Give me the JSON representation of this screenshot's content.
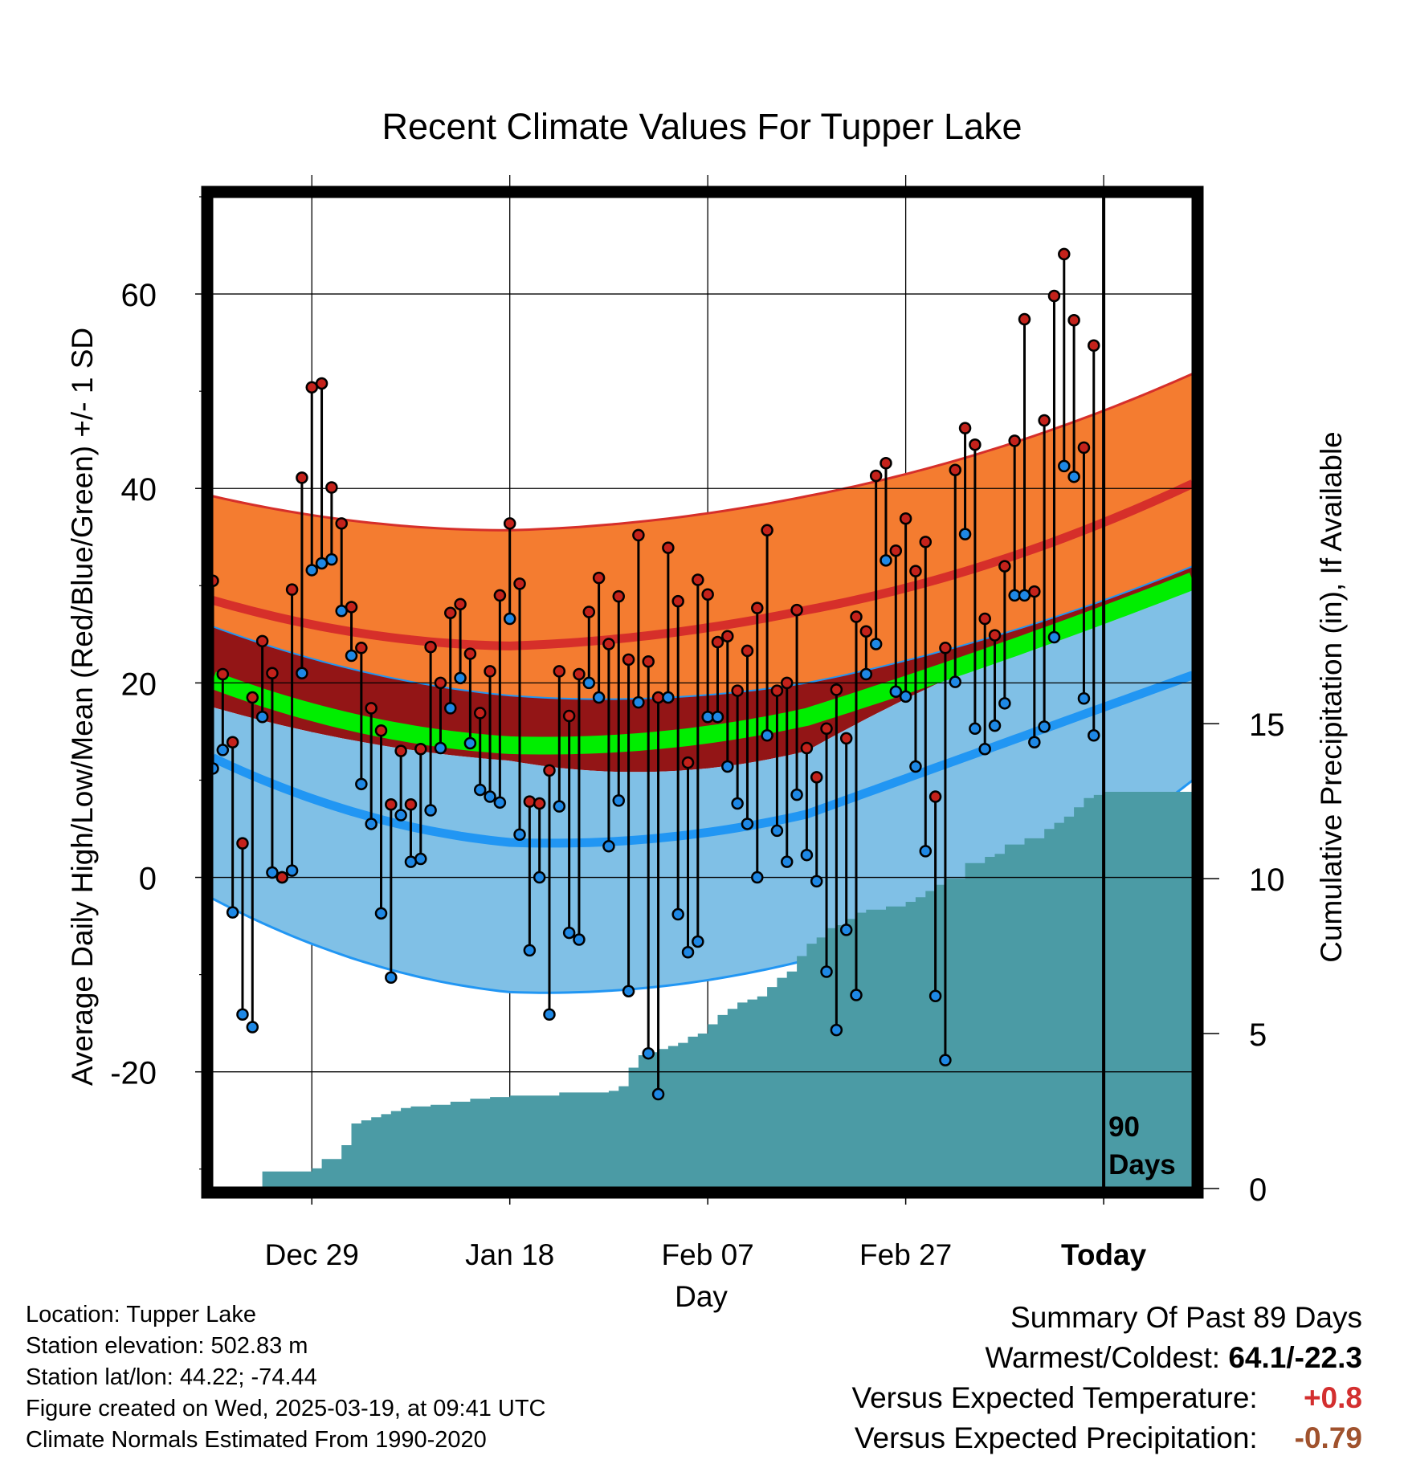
{
  "chart_data": {
    "type": "line",
    "title": "Recent Climate Values For Tupper Lake",
    "xlabel": "Day",
    "ylabel": "Average Daily High/Low/Mean (Red/Blue/Green) +/- 1 SD",
    "y2label": "Cumulative Precipitation (in), If Available",
    "ylim": [
      -32,
      70
    ],
    "yticks": [
      "-20",
      "0",
      "20",
      "40",
      "60"
    ],
    "y2lim": [
      0,
      32
    ],
    "y2ticks": [
      "0",
      "5",
      "10",
      "15"
    ],
    "xrange_days": [
      -90,
      9
    ],
    "xticks": [
      {
        "day": -80,
        "label": "Dec 29"
      },
      {
        "day": -60,
        "label": "Jan 18"
      },
      {
        "day": -40,
        "label": "Feb 07"
      },
      {
        "day": -20,
        "label": "Feb 27"
      },
      {
        "day": 0,
        "label": "Today"
      }
    ],
    "grid": true,
    "today_marker": {
      "day": 0,
      "label": "90\nDays"
    },
    "normals": {
      "day": [
        -90,
        -60,
        -30,
        0,
        9
      ],
      "high_mean": [
        28.5,
        23.8,
        27.5,
        36.5,
        40.5
      ],
      "high_plus_sd": [
        39.2,
        35.7,
        39.2,
        48.0,
        51.8
      ],
      "high_minus_sd": [
        25.8,
        18.7,
        20.0,
        28.5,
        32.0
      ],
      "low_mean": [
        12.3,
        3.6,
        6.5,
        17.5,
        20.8
      ],
      "low_plus_sd": [
        17.5,
        12.0,
        13.0,
        27.0,
        30.0
      ],
      "low_minus_sd": [
        -2.2,
        -11.8,
        -8.5,
        3.5,
        10.0
      ],
      "avg_mean": [
        20.3,
        13.6,
        16.5,
        27.0,
        30.5
      ]
    },
    "series": [
      {
        "name": "High",
        "color": "#c4221b",
        "values": [
          30.5,
          20.9,
          13.9,
          3.5,
          18.5,
          24.3,
          21.0,
          0.0,
          29.6,
          41.1,
          50.4,
          50.8,
          40.1,
          36.4,
          27.8,
          23.6,
          17.4,
          15.1,
          7.5,
          13.0,
          7.5,
          13.2,
          23.7,
          20.0,
          27.2,
          28.1,
          23.0,
          16.9,
          21.2,
          29.0,
          36.4,
          30.2,
          7.8,
          7.6,
          11.0,
          21.2,
          16.6,
          20.9,
          27.3,
          30.8,
          24.0,
          28.9,
          22.4,
          35.2,
          22.2,
          18.5,
          33.9,
          28.4,
          11.8,
          30.6,
          29.1,
          24.2,
          24.8,
          19.2,
          23.3,
          27.7,
          35.7,
          19.2,
          20.0,
          27.5,
          13.3,
          10.3,
          15.3,
          19.3,
          14.3,
          26.8,
          25.3,
          41.3,
          42.6,
          33.6,
          36.9,
          31.5,
          34.5,
          8.3,
          23.6,
          41.9,
          46.2,
          44.5,
          26.6,
          24.9,
          32.0,
          44.9,
          57.4,
          29.4,
          47.0,
          59.8,
          64.1,
          57.3,
          44.2,
          54.7
        ]
      },
      {
        "name": "Low",
        "color": "#1e88e5",
        "values": [
          11.2,
          13.1,
          -3.6,
          -14.1,
          -15.4,
          16.5,
          0.5,
          0.0,
          0.7,
          21.0,
          31.6,
          32.3,
          32.7,
          27.4,
          22.8,
          9.6,
          5.5,
          -3.7,
          -10.3,
          6.4,
          1.6,
          1.9,
          6.9,
          13.3,
          17.4,
          20.5,
          13.8,
          9.0,
          8.3,
          7.7,
          26.6,
          4.4,
          -7.5,
          0.0,
          -14.1,
          7.3,
          -5.7,
          -6.4,
          20.0,
          18.5,
          3.2,
          7.9,
          -11.7,
          18.0,
          -18.1,
          -22.3,
          18.5,
          -3.8,
          -7.7,
          -6.6,
          16.5,
          16.5,
          11.4,
          7.6,
          5.5,
          0.0,
          14.6,
          4.8,
          1.6,
          8.5,
          2.3,
          -0.4,
          -9.7,
          -15.7,
          -5.4,
          -12.1,
          20.9,
          24.0,
          32.6,
          19.1,
          18.6,
          11.4,
          2.7,
          -12.2,
          -18.8,
          20.1,
          35.3,
          15.3,
          13.2,
          15.6,
          17.9,
          29.0,
          29.0,
          13.9,
          15.5,
          24.7,
          42.3,
          41.2,
          18.4,
          14.6
        ]
      }
    ],
    "precip_cumulative": {
      "day": [
        -90,
        -85,
        -81,
        -80,
        -79,
        -78,
        -77,
        -76,
        -75,
        -74,
        -73,
        -72,
        -71,
        -70,
        -68,
        -66,
        -64,
        -62,
        -60,
        -55,
        -50,
        -49,
        -48,
        -47,
        -46,
        -45,
        -44,
        -43,
        -42,
        -41,
        -40,
        -39,
        -38,
        -37,
        -36,
        -35,
        -34,
        -33,
        -32,
        -31,
        -30,
        -29,
        -28,
        -27,
        -26,
        -25,
        -24,
        -22,
        -20,
        -19,
        -18,
        -17,
        -16,
        -14,
        -12,
        -11,
        -10,
        -8,
        -6,
        -5,
        -4,
        -3,
        -2,
        -1,
        0,
        9
      ],
      "values": [
        0.0,
        0.55,
        0.55,
        0.65,
        0.95,
        0.95,
        1.4,
        2.1,
        2.2,
        2.3,
        2.4,
        2.5,
        2.6,
        2.65,
        2.7,
        2.8,
        2.9,
        2.95,
        3.0,
        3.1,
        3.15,
        3.3,
        3.9,
        4.3,
        4.4,
        4.5,
        4.6,
        4.7,
        4.9,
        5.0,
        5.3,
        5.6,
        5.8,
        6.0,
        6.1,
        6.2,
        6.5,
        6.8,
        7.0,
        7.5,
        7.9,
        8.1,
        8.4,
        8.5,
        8.7,
        8.9,
        9.0,
        9.1,
        9.25,
        9.4,
        9.6,
        9.8,
        10.0,
        10.5,
        10.7,
        10.8,
        11.1,
        11.3,
        11.6,
        11.8,
        12.0,
        12.3,
        12.6,
        12.7,
        12.8,
        12.8
      ]
    }
  },
  "info": {
    "location": "Location: Tupper Lake",
    "elevation": "Station elevation: 502.83 m",
    "latlon": "Station lat/lon: 44.22; -74.44",
    "created": "Figure created on Wed, 2025-03-19, at 09:41 UTC",
    "normals": "Climate Normals Estimated From 1990-2020"
  },
  "summary": {
    "heading": "Summary Of Past 89 Days",
    "warmest_label": "Warmest/Coldest:",
    "warmest_value": "64.1/-22.3",
    "temp_label": "Versus Expected Temperature:",
    "temp_value": "+0.8",
    "temp_color": "#d32f2f",
    "precip_label": "Versus Expected Precipitation:",
    "precip_value": "-0.79",
    "precip_color": "#a0522d"
  },
  "colors": {
    "high_band": "#f47c30",
    "high_line": "#d62f2a",
    "mid_band": "#931516",
    "low_band": "#80c0e6",
    "low_line": "#2196f3",
    "mean_band": "#00ee00",
    "precip": "#4b9ba5",
    "dot_high": "#c4221b",
    "dot_low": "#1e88e5"
  }
}
